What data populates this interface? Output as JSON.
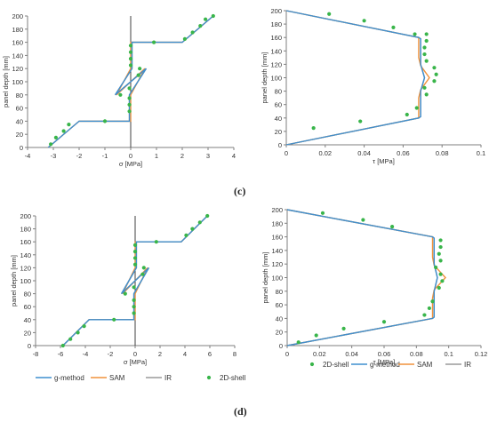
{
  "figure": {
    "label_c": "(c)",
    "label_d": "(d)"
  },
  "colors": {
    "g_method": "#3f8fcf",
    "SAM": "#f0923b",
    "IR": "#9a9a9a",
    "shell2d": "#39b54a",
    "axis": "#7f7f7f",
    "zero_line": "#404040"
  },
  "chart_data": [
    {
      "id": "c-sigma",
      "type": "scatter",
      "xlabel": "σ [MPa]",
      "ylabel": "panel depth [mm]",
      "xlim": [
        -4,
        4
      ],
      "ylim": [
        0,
        200
      ],
      "xticks": [
        "-4",
        "-3",
        "-2",
        "-1",
        "0",
        "1",
        "2",
        "3",
        "4"
      ],
      "yticks": [
        "0",
        "20",
        "40",
        "60",
        "80",
        "100",
        "120",
        "140",
        "160",
        "180",
        "200"
      ],
      "grid": false,
      "series": [
        {
          "name": "g-method",
          "kind": "line",
          "x": [
            -3.2,
            -2.0,
            -0.05,
            -0.05,
            0.6,
            -0.6,
            0.05,
            0.05,
            2.0,
            3.2
          ],
          "y": [
            0,
            40,
            40,
            80,
            120,
            80,
            120,
            160,
            160,
            200
          ]
        },
        {
          "name": "SAM",
          "kind": "line",
          "x": [
            -3.2,
            -2.0,
            0,
            0,
            0.55,
            -0.55,
            0,
            0,
            2.0,
            3.2
          ],
          "y": [
            0,
            40,
            40,
            80,
            120,
            80,
            120,
            160,
            160,
            200
          ]
        },
        {
          "name": "IR",
          "kind": "line",
          "x": [
            -3.2,
            -2.0,
            -0.05,
            -0.05,
            0.6,
            -0.6,
            0.05,
            0.05,
            2.0,
            3.2
          ],
          "y": [
            0,
            40,
            40,
            80,
            120,
            80,
            120,
            160,
            160,
            200
          ]
        },
        {
          "name": "2D-shell",
          "kind": "scatter",
          "x": [
            -3.1,
            -2.9,
            -2.6,
            -2.4,
            -1.0,
            -0.05,
            -0.05,
            -0.05,
            -0.4,
            -0.05,
            0.3,
            0.35,
            0,
            0,
            0,
            0,
            0.9,
            2.1,
            2.4,
            2.7,
            2.9,
            3.2
          ],
          "y": [
            5,
            15,
            25,
            35,
            40,
            55,
            65,
            75,
            80,
            90,
            110,
            120,
            125,
            135,
            145,
            155,
            160,
            165,
            175,
            185,
            195,
            200
          ]
        }
      ]
    },
    {
      "id": "c-tau",
      "type": "scatter",
      "xlabel": "τ [MPa]",
      "ylabel": "panel depth [mm]",
      "xlim": [
        0,
        0.1
      ],
      "ylim": [
        0,
        200
      ],
      "xticks": [
        "0",
        "0.02",
        "0.04",
        "0.06",
        "0.08",
        "0.1"
      ],
      "yticks": [
        "0",
        "20",
        "40",
        "60",
        "80",
        "100",
        "120",
        "140",
        "160",
        "180",
        "200"
      ],
      "grid": false,
      "series": [
        {
          "name": "g-method",
          "kind": "line",
          "x": [
            0,
            0.068,
            0.069,
            0.069,
            0.071,
            0.069,
            0.069,
            0.068,
            0
          ],
          "y": [
            0,
            40,
            42,
            80,
            100,
            120,
            158,
            160,
            200
          ]
        },
        {
          "name": "SAM",
          "kind": "line",
          "x": [
            0,
            0.068,
            0.068,
            0.069,
            0.0735,
            0.069,
            0.068,
            0.068,
            0
          ],
          "y": [
            0,
            40,
            70,
            82,
            100,
            118,
            130,
            160,
            200
          ]
        },
        {
          "name": "IR",
          "kind": "line",
          "x": [
            0,
            0.068,
            0.069,
            0.069,
            0.071,
            0.069,
            0.069,
            0.068,
            0
          ],
          "y": [
            0,
            40,
            42,
            80,
            100,
            120,
            158,
            160,
            200
          ]
        },
        {
          "name": "2D-shell",
          "kind": "scatter",
          "x": [
            0.014,
            0.038,
            0.062,
            0.067,
            0.072,
            0.071,
            0.076,
            0.077,
            0.076,
            0.072,
            0.071,
            0.071,
            0.072,
            0.072,
            0.066,
            0.055,
            0.04,
            0.022
          ],
          "y": [
            25,
            35,
            45,
            55,
            75,
            85,
            95,
            105,
            115,
            125,
            135,
            145,
            155,
            165,
            165,
            175,
            185,
            195
          ]
        }
      ]
    },
    {
      "id": "d-sigma",
      "type": "scatter",
      "xlabel": "σ [MPa]",
      "ylabel": "panel depth [mm]",
      "xlim": [
        -8,
        8
      ],
      "ylim": [
        0,
        200
      ],
      "xticks": [
        "-8",
        "-6",
        "-4",
        "-2",
        "0",
        "2",
        "4",
        "6",
        "8"
      ],
      "yticks": [
        "0",
        "20",
        "40",
        "60",
        "80",
        "100",
        "120",
        "140",
        "160",
        "180",
        "200"
      ],
      "grid": false,
      "series": [
        {
          "name": "g-method",
          "kind": "line",
          "x": [
            -5.8,
            -3.7,
            -0.1,
            -0.1,
            1.1,
            -1.1,
            0.1,
            0.1,
            3.7,
            5.8
          ],
          "y": [
            0,
            40,
            40,
            80,
            120,
            80,
            120,
            160,
            160,
            200
          ]
        },
        {
          "name": "SAM",
          "kind": "line",
          "x": [
            -5.8,
            -3.7,
            0,
            0,
            1.0,
            -1.0,
            0,
            0,
            3.7,
            5.8
          ],
          "y": [
            0,
            40,
            40,
            80,
            120,
            80,
            120,
            160,
            160,
            200
          ]
        },
        {
          "name": "IR",
          "kind": "line",
          "x": [
            -5.8,
            -3.7,
            -0.1,
            -0.1,
            1.1,
            -1.1,
            0.1,
            0.1,
            3.7,
            5.8
          ],
          "y": [
            0,
            40,
            40,
            80,
            120,
            80,
            120,
            160,
            160,
            200
          ]
        },
        {
          "name": "2D-shell",
          "kind": "scatter",
          "x": [
            -5.8,
            -5.2,
            -4.6,
            -4.1,
            -1.7,
            -0.1,
            -0.1,
            -0.1,
            -0.8,
            -0.1,
            0.6,
            0.7,
            0,
            0,
            0,
            0,
            1.7,
            4.1,
            4.6,
            5.2,
            5.8
          ],
          "y": [
            0,
            10,
            20,
            30,
            40,
            50,
            60,
            70,
            80,
            90,
            110,
            120,
            125,
            135,
            145,
            155,
            160,
            170,
            180,
            190,
            200
          ]
        }
      ]
    },
    {
      "id": "d-tau",
      "type": "scatter",
      "xlabel": "τ [MPa]",
      "ylabel": "panel depth [mm]",
      "xlim": [
        0,
        0.12
      ],
      "ylim": [
        0,
        200
      ],
      "xticks": [
        "0",
        "0.02",
        "0.04",
        "0.06",
        "0.08",
        "0.1",
        "0.12"
      ],
      "yticks": [
        "0",
        "20",
        "40",
        "60",
        "80",
        "100",
        "120",
        "140",
        "160",
        "180",
        "200"
      ],
      "grid": false,
      "series": [
        {
          "name": "g-method",
          "kind": "line",
          "x": [
            0,
            0.09,
            0.091,
            0.091,
            0.093,
            0.091,
            0.091,
            0.09,
            0
          ],
          "y": [
            0,
            40,
            42,
            80,
            100,
            120,
            158,
            160,
            200
          ]
        },
        {
          "name": "SAM",
          "kind": "line",
          "x": [
            0,
            0.09,
            0.09,
            0.091,
            0.098,
            0.091,
            0.09,
            0.09,
            0
          ],
          "y": [
            0,
            40,
            70,
            82,
            100,
            118,
            130,
            160,
            200
          ]
        },
        {
          "name": "IR",
          "kind": "line",
          "x": [
            0,
            0.09,
            0.091,
            0.091,
            0.093,
            0.091,
            0.091,
            0.09,
            0
          ],
          "y": [
            0,
            40,
            42,
            80,
            100,
            120,
            158,
            160,
            200
          ]
        },
        {
          "name": "2D-shell",
          "kind": "scatter",
          "x": [
            0.007,
            0.018,
            0.035,
            0.06,
            0.085,
            0.088,
            0.09,
            0.094,
            0.096,
            0.095,
            0.092,
            0.095,
            0.094,
            0.095,
            0.095,
            0.065,
            0.047,
            0.022
          ],
          "y": [
            5,
            15,
            25,
            35,
            45,
            55,
            65,
            85,
            95,
            105,
            115,
            125,
            135,
            145,
            155,
            175,
            185,
            195
          ]
        }
      ]
    }
  ],
  "legends": {
    "d_sigma": [
      "g-method",
      "SAM",
      "IR",
      "2D-shell"
    ],
    "d_tau": [
      "2D-shell",
      "g-method",
      "SAM",
      "IR"
    ]
  }
}
